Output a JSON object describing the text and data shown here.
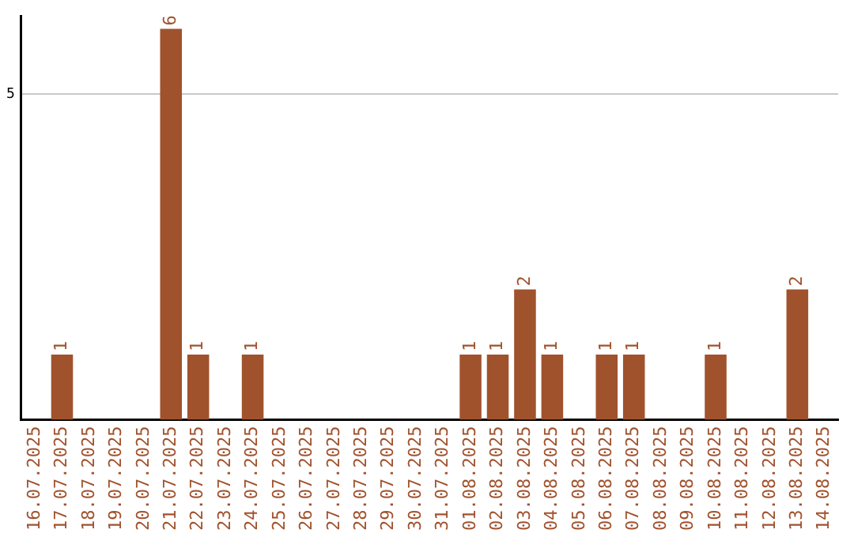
{
  "chart_data": {
    "type": "bar",
    "categories": [
      "16.07.2025",
      "17.07.2025",
      "18.07.2025",
      "19.07.2025",
      "20.07.2025",
      "21.07.2025",
      "22.07.2025",
      "23.07.2025",
      "24.07.2025",
      "25.07.2025",
      "26.07.2025",
      "27.07.2025",
      "28.07.2025",
      "29.07.2025",
      "30.07.2025",
      "31.07.2025",
      "01.08.2025",
      "02.08.2025",
      "03.08.2025",
      "04.08.2025",
      "05.08.2025",
      "06.08.2025",
      "07.08.2025",
      "08.08.2025",
      "09.08.2025",
      "10.08.2025",
      "11.08.2025",
      "12.08.2025",
      "13.08.2025",
      "14.08.2025"
    ],
    "values": [
      0,
      1,
      0,
      0,
      0,
      6,
      1,
      0,
      1,
      0,
      0,
      0,
      0,
      0,
      0,
      0,
      1,
      1,
      2,
      1,
      0,
      1,
      1,
      0,
      0,
      1,
      0,
      0,
      2,
      0
    ],
    "value_labels": [
      null,
      "1",
      null,
      null,
      null,
      "6",
      "1",
      null,
      "1",
      null,
      null,
      null,
      null,
      null,
      null,
      null,
      "1",
      "1",
      "2",
      "1",
      null,
      "1",
      "1",
      null,
      null,
      "1",
      null,
      null,
      "2",
      null
    ],
    "color": "#a0522d",
    "ylim": [
      0,
      6.2
    ],
    "yticks": [
      5
    ],
    "grid": "y",
    "legend": false
  }
}
